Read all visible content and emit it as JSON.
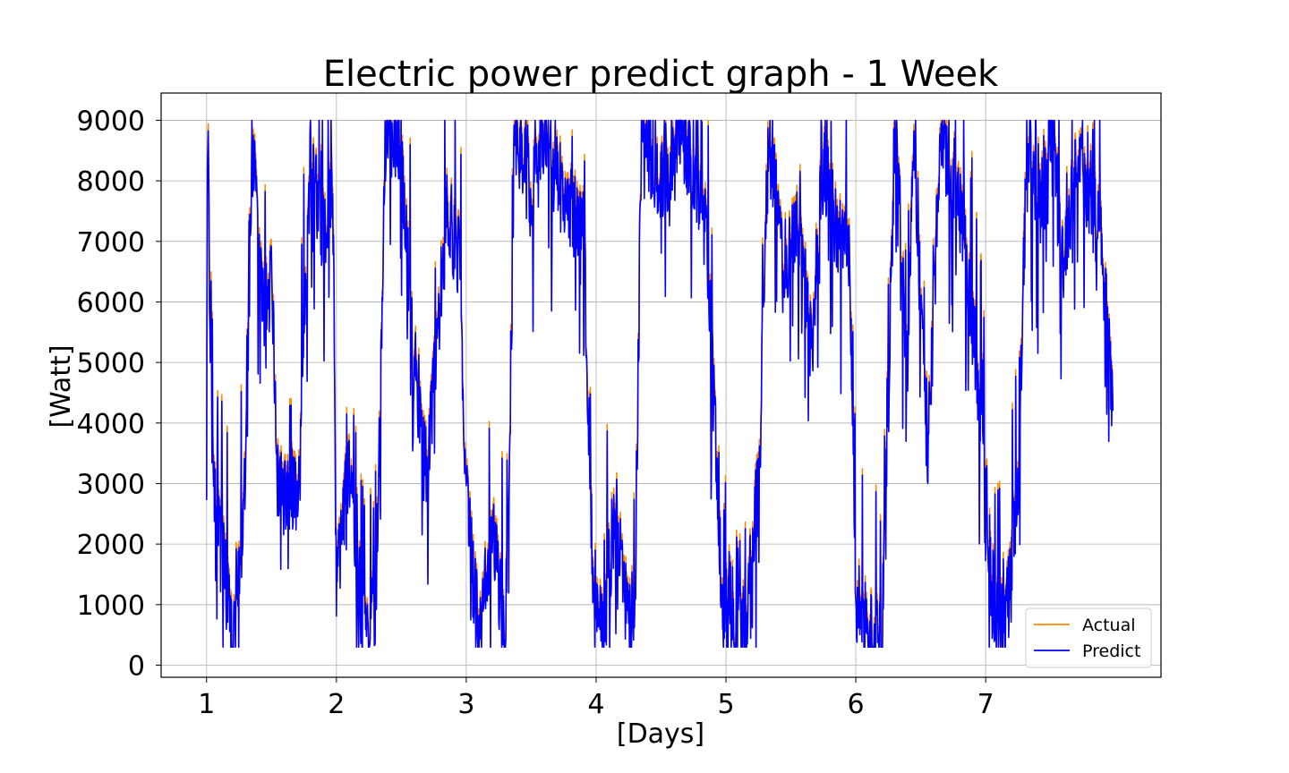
{
  "chart_data": {
    "type": "line",
    "title": "Electric power predict graph - 1 Week",
    "xlabel": "[Days]",
    "ylabel": "[Watt]",
    "xlim": [
      0.65,
      8.35
    ],
    "ylim": [
      -200,
      9450
    ],
    "xticks": [
      1,
      2,
      3,
      4,
      5,
      6,
      7
    ],
    "yticks": [
      0,
      1000,
      2000,
      3000,
      4000,
      5000,
      6000,
      7000,
      8000,
      9000
    ],
    "grid": true,
    "legend_position": "lower-right",
    "x_range": [
      1.0,
      7.98
    ],
    "series": [
      {
        "name": "Actual",
        "color": "#ff8c00",
        "profile": [
          [
            1.0,
            4100
          ],
          [
            1.01,
            8750
          ],
          [
            1.03,
            5400
          ],
          [
            1.05,
            2900
          ],
          [
            1.1,
            2700
          ],
          [
            1.2,
            700
          ],
          [
            1.3,
            2800
          ],
          [
            1.35,
            8950
          ],
          [
            1.45,
            5600
          ],
          [
            1.5,
            6300
          ],
          [
            1.55,
            2900
          ],
          [
            1.7,
            3000
          ],
          [
            1.8,
            8300
          ],
          [
            1.9,
            7100
          ],
          [
            1.97,
            8200
          ],
          [
            2.0,
            1400
          ],
          [
            2.1,
            3400
          ],
          [
            2.2,
            700
          ],
          [
            2.3,
            800
          ],
          [
            2.38,
            8950
          ],
          [
            2.5,
            8400
          ],
          [
            2.6,
            5000
          ],
          [
            2.7,
            3350
          ],
          [
            2.85,
            7500
          ],
          [
            2.95,
            6800
          ],
          [
            3.0,
            2800
          ],
          [
            3.1,
            400
          ],
          [
            3.2,
            2500
          ],
          [
            3.3,
            350
          ],
          [
            3.38,
            8900
          ],
          [
            3.5,
            7800
          ],
          [
            3.6,
            8800
          ],
          [
            3.7,
            8100
          ],
          [
            3.8,
            7500
          ],
          [
            3.9,
            7600
          ],
          [
            3.97,
            1900
          ],
          [
            4.05,
            600
          ],
          [
            4.15,
            2700
          ],
          [
            4.25,
            600
          ],
          [
            4.3,
            1200
          ],
          [
            4.35,
            8950
          ],
          [
            4.45,
            8300
          ],
          [
            4.55,
            7900
          ],
          [
            4.65,
            8900
          ],
          [
            4.75,
            8100
          ],
          [
            4.85,
            7100
          ],
          [
            4.97,
            1200
          ],
          [
            5.05,
            700
          ],
          [
            5.15,
            600
          ],
          [
            5.25,
            3000
          ],
          [
            5.33,
            8950
          ],
          [
            5.45,
            6300
          ],
          [
            5.55,
            7500
          ],
          [
            5.65,
            5400
          ],
          [
            5.75,
            8300
          ],
          [
            5.85,
            7200
          ],
          [
            5.95,
            6800
          ],
          [
            6.0,
            1200
          ],
          [
            6.1,
            400
          ],
          [
            6.2,
            400
          ],
          [
            6.3,
            9000
          ],
          [
            6.4,
            5000
          ],
          [
            6.45,
            8800
          ],
          [
            6.55,
            3400
          ],
          [
            6.65,
            8700
          ],
          [
            6.75,
            8100
          ],
          [
            6.85,
            6900
          ],
          [
            6.97,
            4000
          ],
          [
            7.05,
            1200
          ],
          [
            7.15,
            600
          ],
          [
            7.25,
            3000
          ],
          [
            7.32,
            8900
          ],
          [
            7.4,
            7300
          ],
          [
            7.5,
            8900
          ],
          [
            7.6,
            6700
          ],
          [
            7.7,
            8200
          ],
          [
            7.8,
            7900
          ],
          [
            7.9,
            6800
          ],
          [
            7.98,
            4100
          ]
        ]
      },
      {
        "name": "Predict",
        "color": "#0000ff",
        "profile": [
          [
            1.0,
            4100
          ],
          [
            1.01,
            8700
          ],
          [
            1.03,
            5300
          ],
          [
            1.05,
            2850
          ],
          [
            1.1,
            2650
          ],
          [
            1.2,
            650
          ],
          [
            1.3,
            2750
          ],
          [
            1.35,
            8900
          ],
          [
            1.45,
            5550
          ],
          [
            1.5,
            6250
          ],
          [
            1.55,
            2850
          ],
          [
            1.7,
            2950
          ],
          [
            1.8,
            8250
          ],
          [
            1.9,
            7050
          ],
          [
            1.97,
            8150
          ],
          [
            2.0,
            1350
          ],
          [
            2.1,
            3350
          ],
          [
            2.2,
            650
          ],
          [
            2.3,
            750
          ],
          [
            2.38,
            8900
          ],
          [
            2.5,
            8350
          ],
          [
            2.6,
            4950
          ],
          [
            2.7,
            3300
          ],
          [
            2.85,
            7450
          ],
          [
            2.95,
            6750
          ],
          [
            3.0,
            2750
          ],
          [
            3.1,
            350
          ],
          [
            3.2,
            2450
          ],
          [
            3.3,
            300
          ],
          [
            3.38,
            8850
          ],
          [
            3.5,
            7750
          ],
          [
            3.6,
            8750
          ],
          [
            3.7,
            8050
          ],
          [
            3.8,
            7450
          ],
          [
            3.9,
            7550
          ],
          [
            3.97,
            1850
          ],
          [
            4.05,
            550
          ],
          [
            4.15,
            2650
          ],
          [
            4.25,
            550
          ],
          [
            4.3,
            1150
          ],
          [
            4.35,
            8900
          ],
          [
            4.45,
            8250
          ],
          [
            4.55,
            7850
          ],
          [
            4.65,
            8850
          ],
          [
            4.75,
            8050
          ],
          [
            4.85,
            7050
          ],
          [
            4.97,
            1150
          ],
          [
            5.05,
            650
          ],
          [
            5.15,
            550
          ],
          [
            5.25,
            2950
          ],
          [
            5.33,
            8900
          ],
          [
            5.45,
            6250
          ],
          [
            5.55,
            7450
          ],
          [
            5.65,
            5350
          ],
          [
            5.75,
            8250
          ],
          [
            5.85,
            7150
          ],
          [
            5.95,
            6750
          ],
          [
            6.0,
            1150
          ],
          [
            6.1,
            350
          ],
          [
            6.2,
            350
          ],
          [
            6.3,
            8950
          ],
          [
            6.4,
            4950
          ],
          [
            6.45,
            8750
          ],
          [
            6.55,
            3350
          ],
          [
            6.65,
            8650
          ],
          [
            6.75,
            8050
          ],
          [
            6.85,
            6850
          ],
          [
            6.97,
            3950
          ],
          [
            7.05,
            1150
          ],
          [
            7.15,
            550
          ],
          [
            7.25,
            2950
          ],
          [
            7.32,
            8850
          ],
          [
            7.4,
            7250
          ],
          [
            7.5,
            8850
          ],
          [
            7.6,
            6650
          ],
          [
            7.7,
            8150
          ],
          [
            7.8,
            7850
          ],
          [
            7.9,
            6750
          ],
          [
            7.98,
            4100
          ]
        ]
      }
    ]
  }
}
